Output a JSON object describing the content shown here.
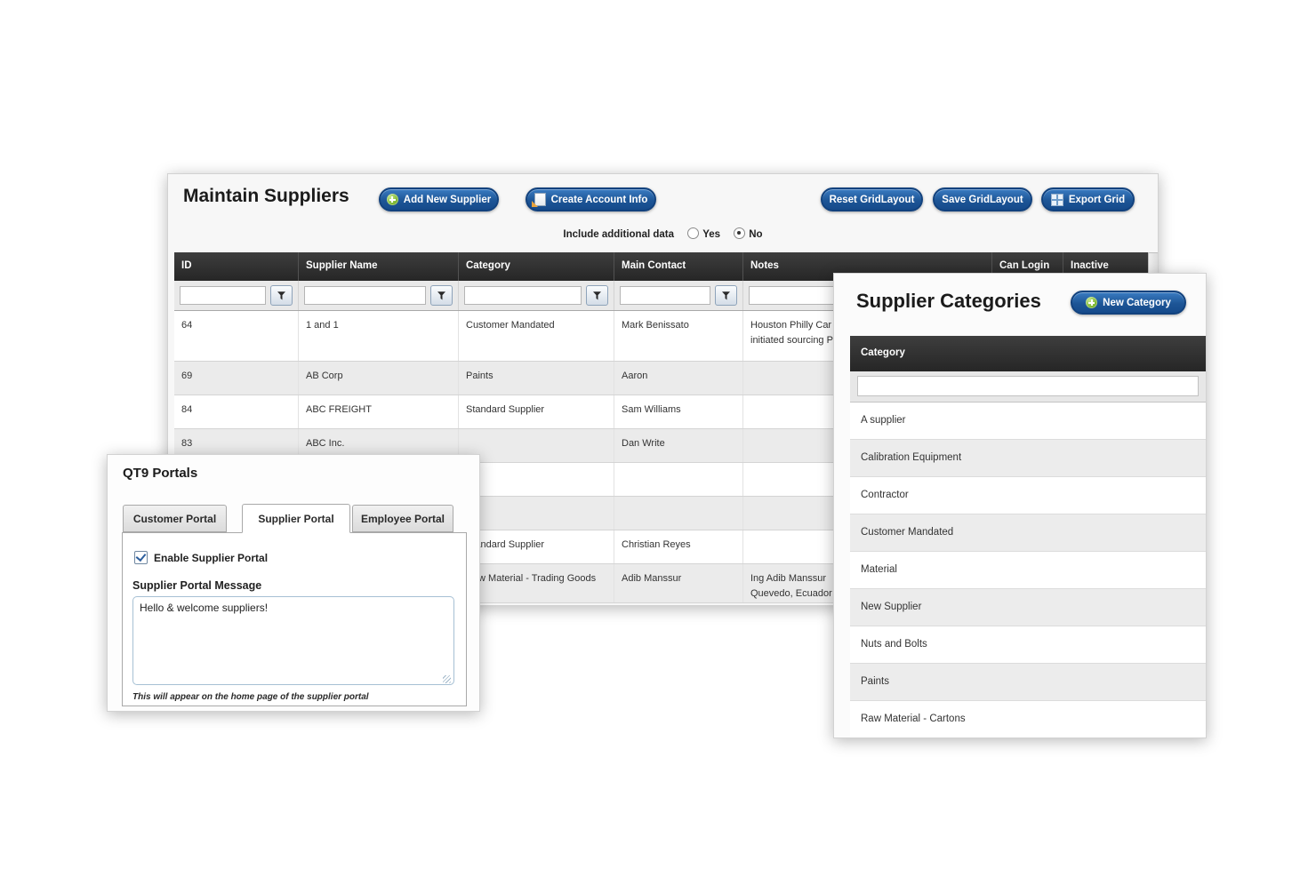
{
  "maintain_suppliers": {
    "title": "Maintain Suppliers",
    "toolbar": {
      "add_new_supplier": "Add New Supplier",
      "create_account_info": "Create Account Info",
      "reset_gridlayout": "Reset GridLayout",
      "save_gridlayout": "Save GridLayout",
      "export_grid": "Export Grid"
    },
    "include_additional_data": {
      "label": "Include additional data",
      "options": [
        "Yes",
        "No"
      ],
      "selected": "No"
    },
    "grid": {
      "columns": [
        "ID",
        "Supplier Name",
        "Category",
        "Main Contact",
        "Notes",
        "Can Login",
        "Inactive"
      ],
      "filter_values": [
        "",
        "",
        "",
        "",
        ""
      ],
      "rows": [
        {
          "id": "64",
          "name": "1 and 1",
          "category": "Customer Mandated",
          "contact": "Mark Benissato",
          "notes": "Houston Philly Car\ninitiated sourcing P"
        },
        {
          "id": "69",
          "name": "AB Corp",
          "category": "Paints",
          "contact": "Aaron",
          "notes": ""
        },
        {
          "id": "84",
          "name": "ABC FREIGHT",
          "category": "Standard Supplier",
          "contact": "Sam Williams",
          "notes": ""
        },
        {
          "id": "83",
          "name": "ABC Inc.",
          "category": "",
          "contact": "Dan Write",
          "notes": ""
        },
        {
          "id": "",
          "name": "",
          "category": "",
          "contact": "",
          "notes": ""
        },
        {
          "id": "",
          "name": "",
          "category": "",
          "contact": "",
          "notes": ""
        },
        {
          "id": "",
          "name": "",
          "category": "Standard Supplier",
          "contact": "Christian Reyes",
          "notes": ""
        },
        {
          "id": "",
          "name": "",
          "category": "Raw Material - Trading Goods",
          "contact": "Adib Manssur",
          "notes": "Ing Adib Manssur\nQuevedo, Ecuador"
        }
      ]
    }
  },
  "supplier_categories": {
    "title": "Supplier Categories",
    "new_category_button": "New Category",
    "column_header": "Category",
    "filter_value": "",
    "rows": [
      "A supplier",
      "Calibration Equipment",
      "Contractor",
      "Customer Mandated",
      "Material",
      "New Supplier",
      "Nuts and Bolts",
      "Paints",
      "Raw Material - Cartons"
    ]
  },
  "qt9_portals": {
    "title": "QT9 Portals",
    "tabs": [
      {
        "label": "Customer Portal",
        "active": false
      },
      {
        "label": "Supplier Portal",
        "active": true
      },
      {
        "label": "Employee Portal",
        "active": false
      }
    ],
    "enable_checkbox": {
      "label": "Enable Supplier Portal",
      "checked": true
    },
    "message_label": "Supplier Portal Message",
    "message_value": "Hello & welcome suppliers!",
    "footnote": "This will appear on the home page of the supplier portal"
  },
  "icons": {
    "add_new_supplier": "plus-circle-icon",
    "create_account_info": "document-icon",
    "export_grid": "grid-icon",
    "new_category": "plus-circle-icon",
    "column_filter": "funnel-icon"
  },
  "colors": {
    "button_blue": "#1d5596",
    "button_border": "#12427e",
    "grid_header_dark": "#2e2e2e",
    "row_alt": "#ebebeb",
    "accent_green": "#7db832"
  }
}
